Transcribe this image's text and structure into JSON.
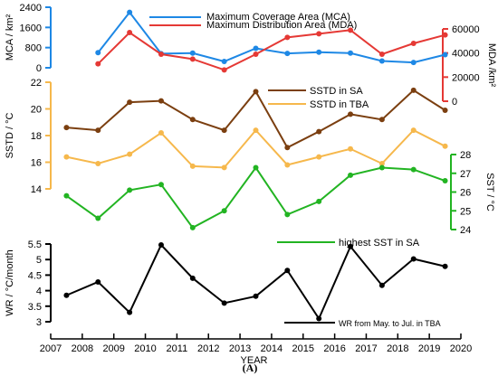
{
  "panel_label": "(A)",
  "chart_data": {
    "type": "line",
    "x": [
      2007.5,
      2008.5,
      2009.5,
      2010.5,
      2011.5,
      2012.5,
      2013.5,
      2014.5,
      2015.5,
      2016.5,
      2017.5,
      2018.5,
      2019.5
    ],
    "xlabel": "YEAR",
    "xlim": [
      2007,
      2020
    ],
    "xticks": [
      2007,
      2008,
      2009,
      2010,
      2011,
      2012,
      2013,
      2014,
      2015,
      2016,
      2017,
      2018,
      2019,
      2020
    ],
    "axes": [
      {
        "id": "mca",
        "label": "MCA / km²",
        "side": "left",
        "ylim": [
          0,
          2400
        ],
        "ticks": [
          0,
          800,
          1600,
          2400
        ],
        "color": "#1e88e5"
      },
      {
        "id": "mda",
        "label": "MDA /km²",
        "side": "right",
        "ylim": [
          0,
          60000
        ],
        "ticks": [
          0,
          20000,
          40000,
          60000
        ],
        "color": "#e53935"
      },
      {
        "id": "sstd",
        "label": "SSTD / °C",
        "side": "left",
        "ylim": [
          14,
          22
        ],
        "ticks": [
          14,
          16,
          18,
          20,
          22
        ],
        "color": "#f6b84c"
      },
      {
        "id": "sst",
        "label": "SST / °C",
        "side": "right",
        "ylim": [
          24,
          28
        ],
        "ticks": [
          24,
          25,
          26,
          27,
          28
        ],
        "color": "#22b422"
      },
      {
        "id": "wr",
        "label": "WR / °C/month",
        "side": "left",
        "ylim": [
          3,
          5.5
        ],
        "ticks": [
          3,
          3.5,
          4,
          4.5,
          5,
          5.5
        ],
        "color": "#000000"
      }
    ],
    "series": [
      {
        "name": "Maximum Coverage Area (MCA)",
        "axis": "mca",
        "color": "#1e88e5",
        "values": [
          null,
          600,
          2200,
          560,
          580,
          250,
          770,
          570,
          620,
          580,
          270,
          210,
          520
        ]
      },
      {
        "name": "Maximum Distribution Area (MDA)",
        "axis": "mda",
        "color": "#e53935",
        "values": [
          null,
          31000,
          57000,
          39000,
          35000,
          26000,
          39000,
          53000,
          56000,
          59000,
          39000,
          48000,
          55000
        ]
      },
      {
        "name": "SSTD in SA",
        "axis": "sstd",
        "color": "#7b3f10",
        "values": [
          18.6,
          18.4,
          20.5,
          20.6,
          19.2,
          18.4,
          21.3,
          17.1,
          18.3,
          19.6,
          19.2,
          21.4,
          19.9
        ]
      },
      {
        "name": "SSTD in TBA",
        "axis": "sstd",
        "color": "#f6b84c",
        "values": [
          16.4,
          15.9,
          16.6,
          18.2,
          15.7,
          15.6,
          18.4,
          15.8,
          16.4,
          17.0,
          15.9,
          18.4,
          17.2
        ]
      },
      {
        "name": "highest SST in SA",
        "axis": "sst",
        "color": "#22b422",
        "values": [
          25.8,
          24.6,
          26.1,
          26.4,
          24.1,
          25.0,
          27.3,
          24.8,
          25.5,
          26.9,
          27.3,
          27.2,
          26.6
        ]
      },
      {
        "name": "WR from May. to Jul. in TBA",
        "axis": "wr",
        "color": "#000000",
        "values": [
          3.85,
          4.28,
          3.3,
          5.47,
          4.4,
          3.6,
          3.82,
          4.65,
          3.1,
          5.42,
          4.17,
          5.02,
          4.78
        ]
      }
    ]
  }
}
